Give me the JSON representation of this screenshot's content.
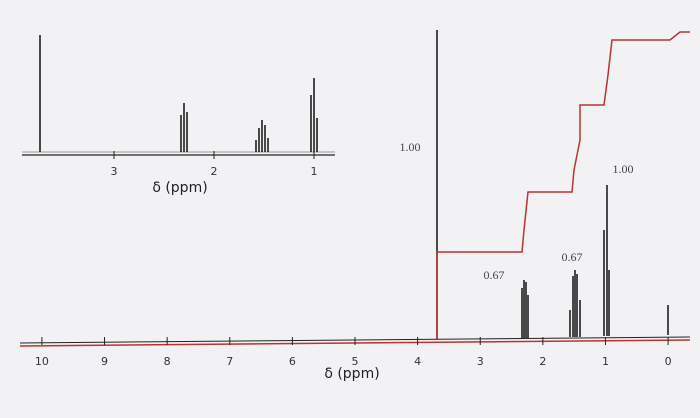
{
  "main_spectrum": {
    "xlim": [
      10.35,
      -0.35
    ],
    "xticks": [
      10,
      9,
      8,
      7,
      6,
      5,
      4,
      3,
      2,
      1,
      0
    ],
    "x_label": "δ (ppm)",
    "integrals": [
      "1.00",
      "0.67",
      "0.67",
      "1.00"
    ]
  },
  "inset": {
    "xlim": [
      3.92,
      0.79
    ],
    "xticks": [
      3,
      2,
      1
    ],
    "x_label": "δ (ppm)"
  }
}
